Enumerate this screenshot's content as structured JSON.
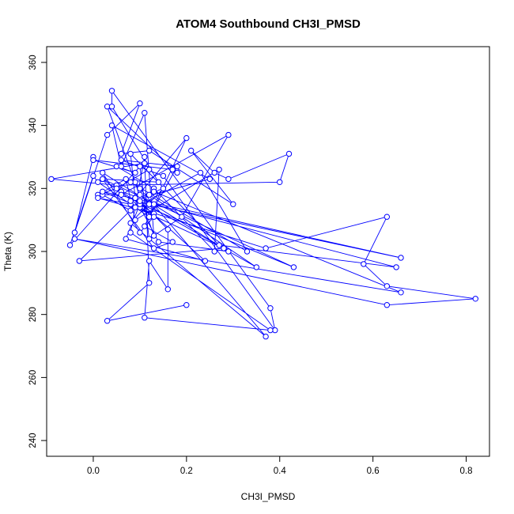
{
  "chart_data": {
    "type": "line",
    "title": "ATOM4 Southbound CH3I_PMSD",
    "xlabel": "CH3I_PMSD",
    "ylabel": "Theta (K)",
    "xlim": [
      -0.1,
      0.85
    ],
    "ylim": [
      235,
      365
    ],
    "xticks": [
      "0.0",
      "0.2",
      "0.4",
      "0.6",
      "0.8"
    ],
    "yticks": [
      "240",
      "260",
      "280",
      "300",
      "320",
      "340",
      "360"
    ],
    "grid": false,
    "legend": "none",
    "series": [
      {
        "color": "#0000ff",
        "marker": "open-circle",
        "x": [
          0.0,
          -0.04,
          0.03,
          0.1,
          0.06,
          0.12,
          0.3,
          0.21,
          0.26,
          0.29,
          0.42,
          0.4,
          0.05,
          -0.09,
          0.11,
          0.12,
          0.05,
          0.01,
          0.07,
          0.09,
          0.27,
          0.26,
          0.13,
          0.05,
          0.09,
          0.0,
          0.17,
          0.18,
          0.03,
          0.09,
          0.1,
          0.06,
          0.13,
          0.01,
          0.08,
          0.2,
          0.11,
          0.17,
          0.13,
          0.02,
          0.14,
          0.04,
          0.04,
          0.38,
          0.39,
          0.15,
          0.06,
          0.18,
          0.12,
          0.01,
          0.0,
          -0.05,
          0.1,
          0.12,
          0.19,
          0.29,
          0.06,
          0.02,
          0.08,
          0.23,
          0.33,
          0.08,
          0.1,
          0.37,
          0.08,
          0.15,
          0.08,
          0.25,
          0.04,
          0.06,
          0.11,
          0.13,
          0.1,
          0.12,
          0.66,
          0.02,
          0.1,
          0.13,
          0.65,
          0.27,
          0.08,
          0.09,
          0.24,
          0.07,
          0.1,
          0.43,
          0.02,
          0.13,
          0.1,
          0.02,
          0.29,
          0.14,
          0.09,
          0.35,
          0.12,
          0.13,
          0.66,
          -0.04,
          0.63,
          0.82,
          0.63,
          0.58,
          0.63,
          0.37,
          0.09,
          0.28,
          -0.03,
          0.1,
          0.16,
          0.16,
          0.12,
          0.11,
          0.38,
          0.08,
          0.11,
          0.12,
          0.03,
          0.2
        ],
        "y": [
          330,
          306,
          337,
          347,
          331,
          332,
          315,
          332,
          325,
          323,
          331,
          322,
          321,
          323,
          328,
          326,
          320,
          318,
          323,
          310,
          326,
          300,
          320,
          327,
          325,
          329,
          326,
          325,
          346,
          322,
          317,
          319,
          312,
          317,
          315,
          336,
          308,
          303,
          301,
          323,
          322,
          346,
          351,
          282,
          275,
          324,
          329,
          327,
          311,
          322,
          324,
          302,
          327,
          304,
          311,
          337,
          318,
          318,
          313,
          325,
          300,
          322,
          320,
          273,
          309,
          320,
          316,
          323,
          340,
          327,
          344,
          305,
          318,
          315,
          298,
          319,
          314,
          315,
          295,
          302,
          331,
          317,
          297,
          304,
          315,
          295,
          323,
          311,
          306,
          325,
          300,
          303,
          317,
          295,
          318,
          319,
          287,
          304,
          283,
          285,
          289,
          296,
          311,
          301,
          314,
          301,
          297,
          316,
          307,
          288,
          297,
          279,
          275,
          306,
          330,
          290,
          278,
          283
        ]
      }
    ]
  }
}
